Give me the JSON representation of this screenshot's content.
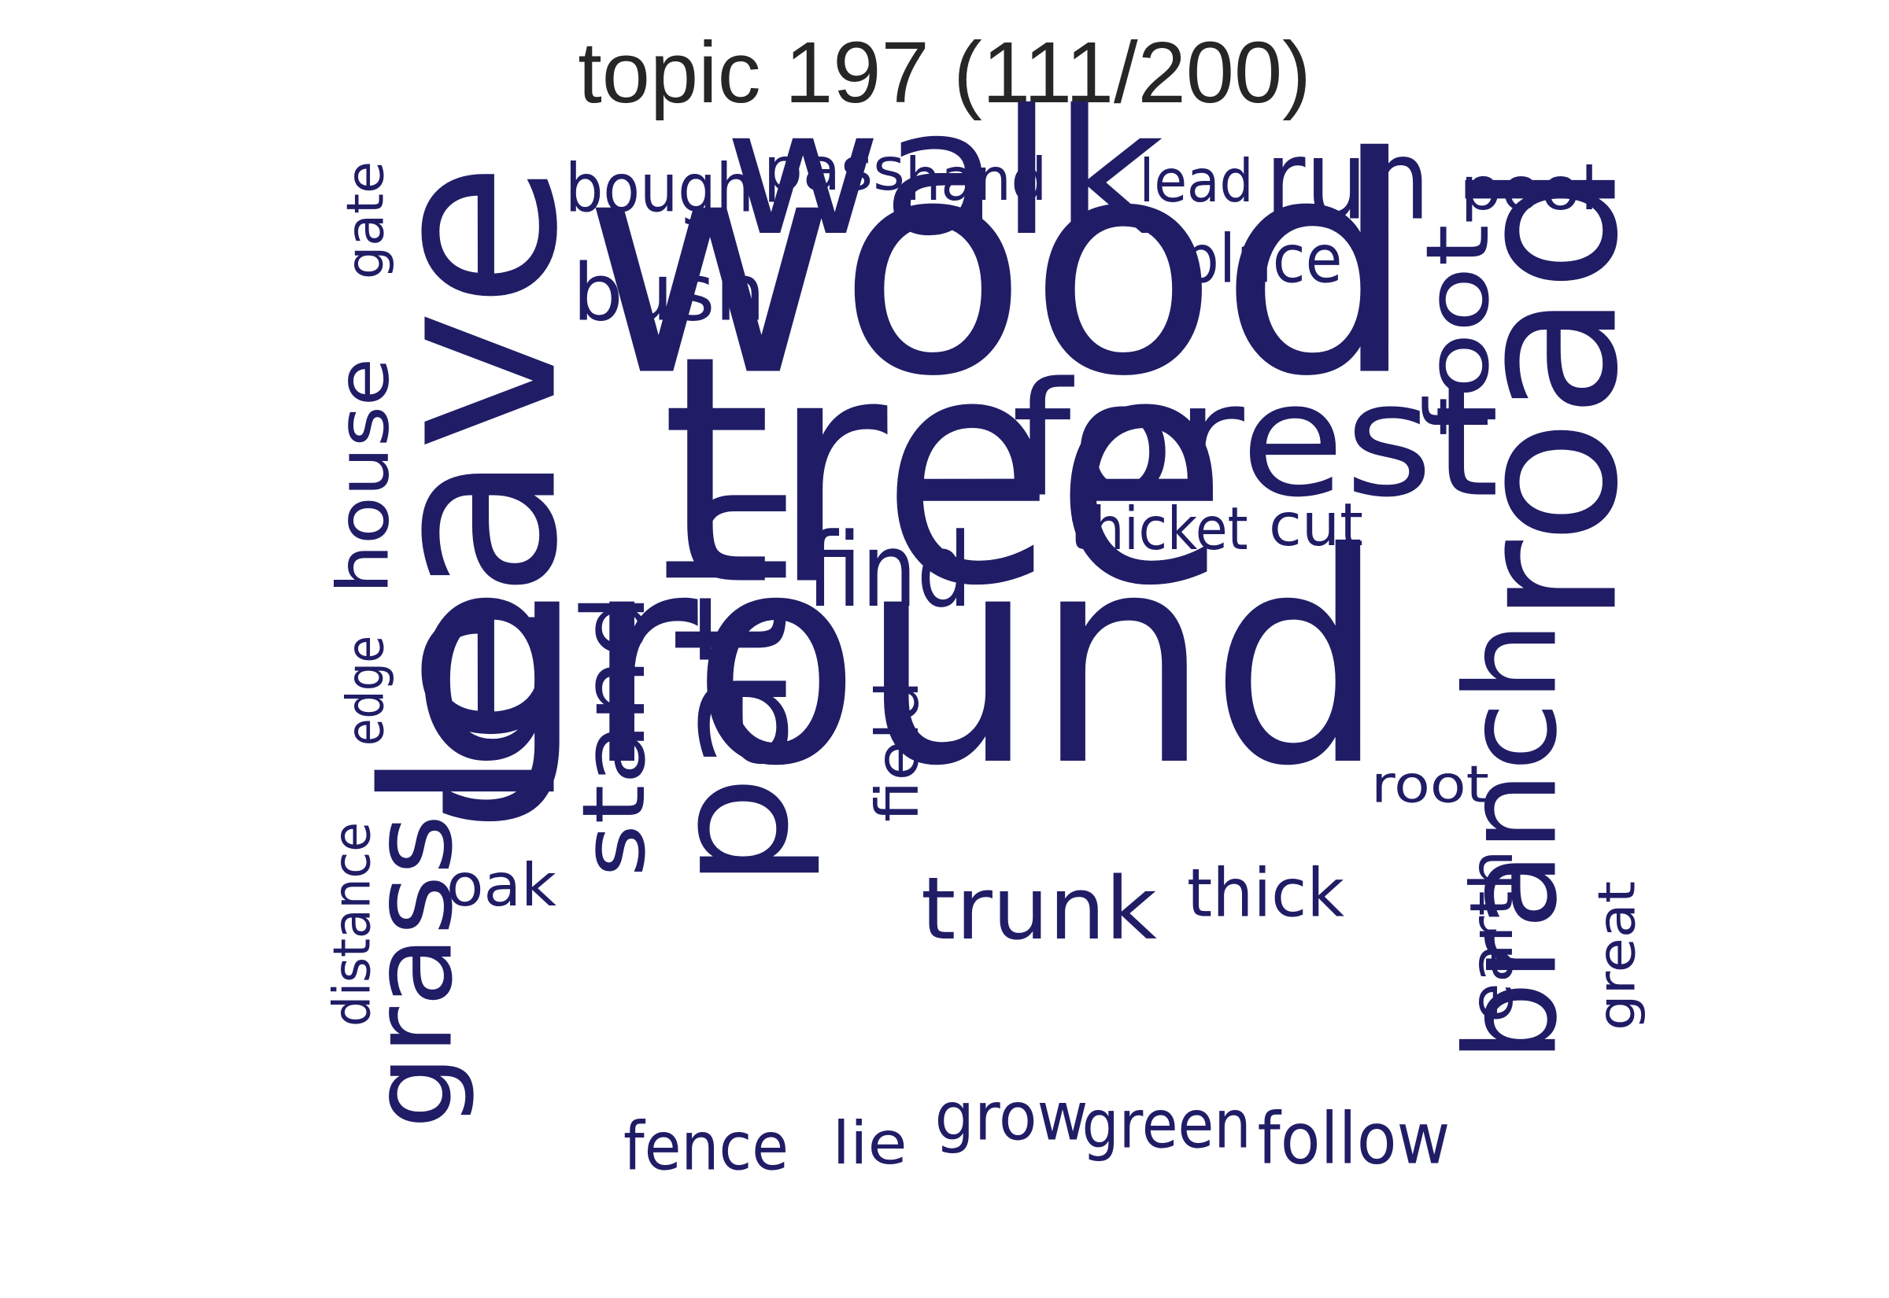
{
  "title": "topic 197 (111/200)",
  "word_color": "#201d66",
  "words": [
    {
      "text": "wood",
      "orientation": "horizontal"
    },
    {
      "text": "tree",
      "orientation": "horizontal"
    },
    {
      "text": "ground",
      "orientation": "horizontal"
    },
    {
      "text": "leave",
      "orientation": "vertical"
    },
    {
      "text": "road",
      "orientation": "vertical"
    },
    {
      "text": "walk",
      "orientation": "horizontal"
    },
    {
      "text": "forest",
      "orientation": "horizontal"
    },
    {
      "text": "path",
      "orientation": "vertical"
    },
    {
      "text": "branch",
      "orientation": "vertical"
    },
    {
      "text": "run",
      "orientation": "horizontal"
    },
    {
      "text": "grass",
      "orientation": "vertical"
    },
    {
      "text": "find",
      "orientation": "horizontal"
    },
    {
      "text": "stand",
      "orientation": "vertical"
    },
    {
      "text": "trunk",
      "orientation": "horizontal"
    },
    {
      "text": "foot",
      "orientation": "vertical"
    },
    {
      "text": "bush",
      "orientation": "horizontal"
    },
    {
      "text": "house",
      "orientation": "vertical"
    },
    {
      "text": "follow",
      "orientation": "horizontal"
    },
    {
      "text": "bough",
      "orientation": "horizontal"
    },
    {
      "text": "place",
      "orientation": "horizontal"
    },
    {
      "text": "fence",
      "orientation": "horizontal"
    },
    {
      "text": "green",
      "orientation": "horizontal"
    },
    {
      "text": "grow",
      "orientation": "horizontal"
    },
    {
      "text": "thick",
      "orientation": "horizontal"
    },
    {
      "text": "thicket",
      "orientation": "horizontal"
    },
    {
      "text": "pass",
      "orientation": "horizontal"
    },
    {
      "text": "hand",
      "orientation": "horizontal"
    },
    {
      "text": "pool",
      "orientation": "horizontal"
    },
    {
      "text": "oak",
      "orientation": "horizontal"
    },
    {
      "text": "field",
      "orientation": "vertical"
    },
    {
      "text": "earth",
      "orientation": "vertical"
    },
    {
      "text": "lead",
      "orientation": "horizontal"
    },
    {
      "text": "cut",
      "orientation": "horizontal"
    },
    {
      "text": "root",
      "orientation": "horizontal"
    },
    {
      "text": "lie",
      "orientation": "horizontal"
    },
    {
      "text": "distance",
      "orientation": "vertical"
    },
    {
      "text": "edge",
      "orientation": "vertical"
    },
    {
      "text": "gate",
      "orientation": "vertical"
    },
    {
      "text": "great",
      "orientation": "vertical"
    }
  ]
}
